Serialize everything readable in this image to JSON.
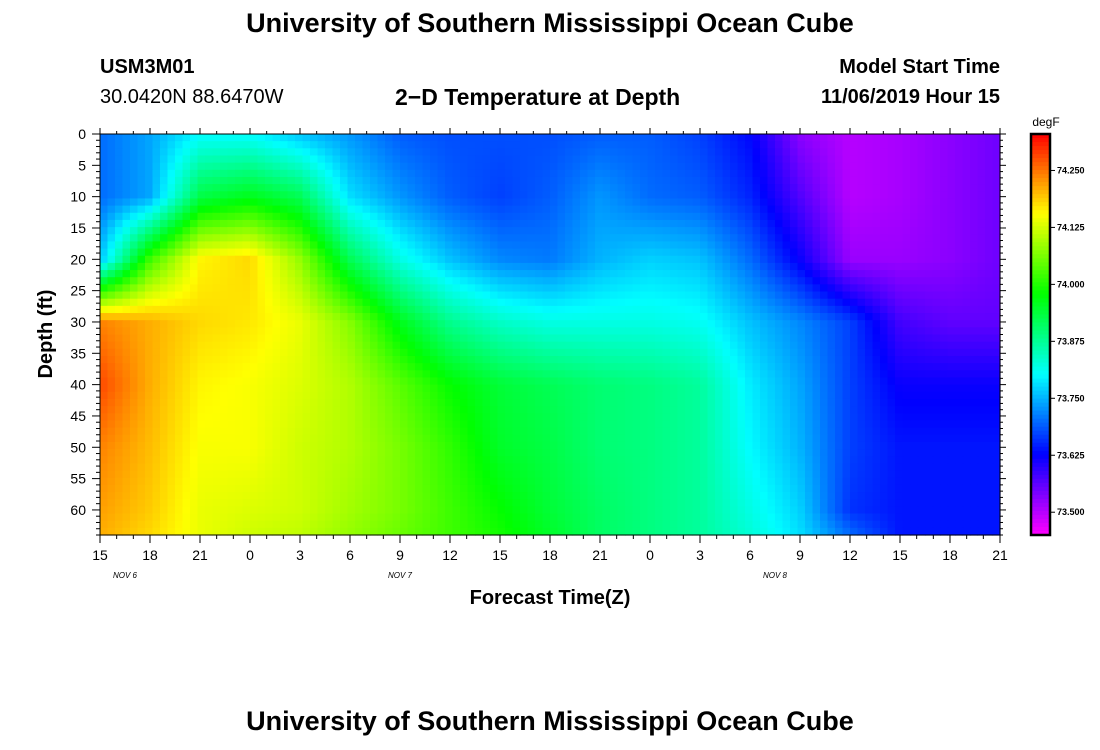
{
  "header": {
    "title": "University of Southern Mississippi Ocean Cube",
    "station_id": "USM3M01",
    "station_coords": "30.0420N 88.6470W",
    "chart_title": "2−D Temperature at Depth",
    "start_label": "Model Start Time",
    "start_value": "11/06/2019 Hour 15"
  },
  "footer": {
    "title": "University of Southern Mississippi Ocean Cube"
  },
  "chart_data": {
    "type": "heatmap",
    "title": "2−D Temperature at Depth",
    "xlabel": "Forecast Time(Z)",
    "ylabel": "Depth (ft)",
    "x_range_hours": [
      0,
      54
    ],
    "x_tick_labels": [
      "15",
      "18",
      "21",
      "0",
      "3",
      "6",
      "9",
      "12",
      "15",
      "18",
      "21",
      "0",
      "3",
      "6",
      "9",
      "12",
      "15",
      "18",
      "21"
    ],
    "date_labels": [
      {
        "label": "NOV  6",
        "hour": 1.5
      },
      {
        "label": "NOV  7",
        "hour": 18
      },
      {
        "label": "NOV  8",
        "hour": 40.5
      }
    ],
    "y_range": [
      0,
      64
    ],
    "y_ticks": [
      0,
      5,
      10,
      15,
      20,
      25,
      30,
      35,
      40,
      45,
      50,
      55,
      60
    ],
    "colorbar": {
      "unit": "degF",
      "min": 73.45,
      "max": 74.33,
      "tick_values": [
        74.25,
        74.125,
        74.0,
        73.875,
        73.75,
        73.625,
        73.5
      ],
      "tick_labels": [
        "74.250",
        "74.125",
        "74.000",
        "73.875",
        "73.750",
        "73.625",
        "73.500"
      ]
    },
    "depths": [
      0,
      10,
      20,
      30,
      40,
      50,
      60,
      64
    ],
    "hours": [
      0,
      3,
      6,
      9,
      12,
      15,
      18,
      21,
      24,
      27,
      30,
      33,
      36,
      39,
      42,
      45,
      48,
      51,
      54
    ],
    "temperature": [
      [
        73.7,
        73.74,
        73.8,
        73.8,
        73.76,
        73.73,
        73.69,
        73.68,
        73.68,
        73.68,
        73.69,
        73.69,
        73.67,
        73.63,
        73.53,
        73.5,
        73.51,
        73.53,
        73.55
      ],
      [
        73.7,
        73.74,
        73.93,
        73.96,
        73.92,
        73.78,
        73.73,
        73.69,
        73.67,
        73.69,
        73.73,
        73.7,
        73.69,
        73.65,
        73.57,
        73.5,
        73.51,
        73.53,
        73.55
      ],
      [
        73.76,
        74.02,
        74.16,
        74.18,
        74.08,
        73.92,
        73.82,
        73.76,
        73.72,
        73.71,
        73.75,
        73.77,
        73.76,
        73.7,
        73.62,
        73.52,
        73.52,
        73.53,
        73.55
      ],
      [
        74.24,
        74.21,
        74.18,
        74.17,
        74.14,
        74.07,
        73.96,
        73.88,
        73.84,
        73.82,
        73.82,
        73.82,
        73.81,
        73.76,
        73.72,
        73.67,
        73.58,
        73.56,
        73.56
      ],
      [
        74.28,
        74.21,
        74.16,
        74.15,
        74.13,
        74.1,
        74.04,
        73.98,
        73.94,
        73.92,
        73.9,
        73.89,
        73.87,
        73.79,
        73.74,
        73.67,
        73.62,
        73.62,
        73.62
      ],
      [
        74.24,
        74.2,
        74.15,
        74.15,
        74.12,
        74.1,
        74.06,
        74.01,
        73.95,
        73.93,
        73.9,
        73.89,
        73.87,
        73.8,
        73.75,
        73.67,
        73.64,
        73.64,
        73.64
      ],
      [
        74.22,
        74.19,
        74.14,
        74.13,
        74.12,
        74.09,
        74.06,
        74.02,
        73.98,
        73.94,
        73.91,
        73.89,
        73.87,
        73.82,
        73.77,
        73.66,
        73.64,
        73.64,
        73.64
      ],
      [
        74.21,
        74.18,
        74.14,
        74.12,
        74.11,
        74.08,
        74.05,
        74.02,
        73.99,
        73.95,
        73.91,
        73.89,
        73.87,
        73.83,
        73.78,
        73.7,
        73.64,
        73.64,
        73.64
      ]
    ]
  }
}
